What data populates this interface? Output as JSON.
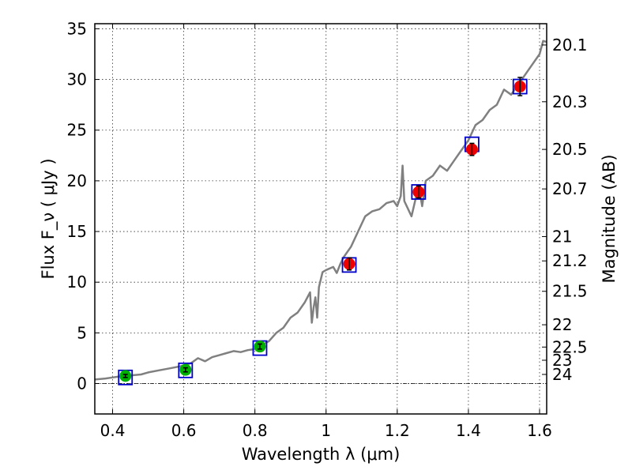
{
  "chart_data": {
    "type": "scatter",
    "xlabel": "Wavelength  λ (μm)",
    "ylabel": "Flux  F_ν  ( μJy )",
    "ylabel_right": "Magnitude (AB)",
    "xlim": [
      0.35,
      1.62
    ],
    "ylim": [
      -3,
      35.5
    ],
    "x_ticks": [
      0.4,
      0.6,
      0.8,
      1.0,
      1.2,
      1.4,
      1.6
    ],
    "x_tick_labels": [
      "0.4",
      "0.6",
      "0.8",
      "1",
      "1.2",
      "1.4",
      "1.6"
    ],
    "y_ticks": [
      0,
      5,
      10,
      15,
      20,
      25,
      30,
      35
    ],
    "y_tick_labels": [
      "0",
      "5",
      "10",
      "15",
      "20",
      "25",
      "30",
      "35"
    ],
    "right_ticks": [
      {
        "label": "20.1",
        "flux": 33.4
      },
      {
        "label": "20.3",
        "flux": 27.8
      },
      {
        "label": "20.5",
        "flux": 23.1
      },
      {
        "label": "20.7",
        "flux": 19.2
      },
      {
        "label": "21",
        "flux": 14.5
      },
      {
        "label": "21.2",
        "flux": 12.1
      },
      {
        "label": "21.5",
        "flux": 9.1
      },
      {
        "label": "22",
        "flux": 5.8
      },
      {
        "label": "22.5",
        "flux": 3.6
      },
      {
        "label": "23",
        "flux": 2.3
      },
      {
        "label": "24",
        "flux": 0.9
      }
    ],
    "grid": true,
    "zero_line": true,
    "series": [
      {
        "role": "model-spectrum",
        "style": "line",
        "color": "#808080",
        "x": [
          0.35,
          0.38,
          0.4,
          0.42,
          0.45,
          0.48,
          0.5,
          0.53,
          0.56,
          0.59,
          0.62,
          0.64,
          0.66,
          0.68,
          0.7,
          0.72,
          0.74,
          0.76,
          0.78,
          0.8,
          0.82,
          0.84,
          0.86,
          0.88,
          0.9,
          0.92,
          0.94,
          0.955,
          0.96,
          0.965,
          0.97,
          0.975,
          0.98,
          0.99,
          1.0,
          1.02,
          1.03,
          1.04,
          1.05,
          1.07,
          1.09,
          1.11,
          1.13,
          1.15,
          1.17,
          1.19,
          1.2,
          1.21,
          1.215,
          1.22,
          1.24,
          1.26,
          1.27,
          1.28,
          1.3,
          1.32,
          1.34,
          1.36,
          1.38,
          1.4,
          1.42,
          1.44,
          1.46,
          1.48,
          1.5,
          1.52,
          1.54,
          1.56,
          1.58,
          1.6,
          1.61,
          1.62
        ],
        "y": [
          0.4,
          0.5,
          0.6,
          0.7,
          0.8,
          0.9,
          1.1,
          1.3,
          1.5,
          1.7,
          2.0,
          2.5,
          2.2,
          2.6,
          2.8,
          3.0,
          3.2,
          3.1,
          3.3,
          3.4,
          3.8,
          4.2,
          5.0,
          5.5,
          6.5,
          7.0,
          8.0,
          9.0,
          6.0,
          7.5,
          8.5,
          6.5,
          9.5,
          11.0,
          11.2,
          11.5,
          10.9,
          11.8,
          12.5,
          13.5,
          15.0,
          16.5,
          17.0,
          17.2,
          17.8,
          18.0,
          17.5,
          18.5,
          21.5,
          18.0,
          16.5,
          19.5,
          17.5,
          20.0,
          20.5,
          21.5,
          21.0,
          22.0,
          23.0,
          24.0,
          25.5,
          26.0,
          27.0,
          27.5,
          29.0,
          28.5,
          29.5,
          30.5,
          31.5,
          32.5,
          33.8,
          33.7
        ]
      },
      {
        "role": "observed-optical",
        "style": "marker",
        "color": "#00b000",
        "x": [
          0.436,
          0.605,
          0.814
        ],
        "y": [
          0.75,
          1.35,
          3.65
        ],
        "yerr": [
          0.15,
          0.2,
          0.25
        ]
      },
      {
        "role": "observed-nir",
        "style": "marker",
        "color": "#ee0000",
        "x": [
          1.065,
          1.26,
          1.41,
          1.545
        ],
        "y": [
          11.8,
          18.9,
          23.1,
          29.3
        ],
        "yerr": [
          0.6,
          0.6,
          0.6,
          0.9
        ]
      },
      {
        "role": "model-synthetic",
        "style": "open-square",
        "color": "#0000cc",
        "x": [
          0.436,
          0.605,
          0.814,
          1.065,
          1.26,
          1.41,
          1.545
        ],
        "y": [
          0.6,
          1.3,
          3.5,
          11.7,
          18.9,
          23.6,
          29.3
        ]
      }
    ]
  }
}
